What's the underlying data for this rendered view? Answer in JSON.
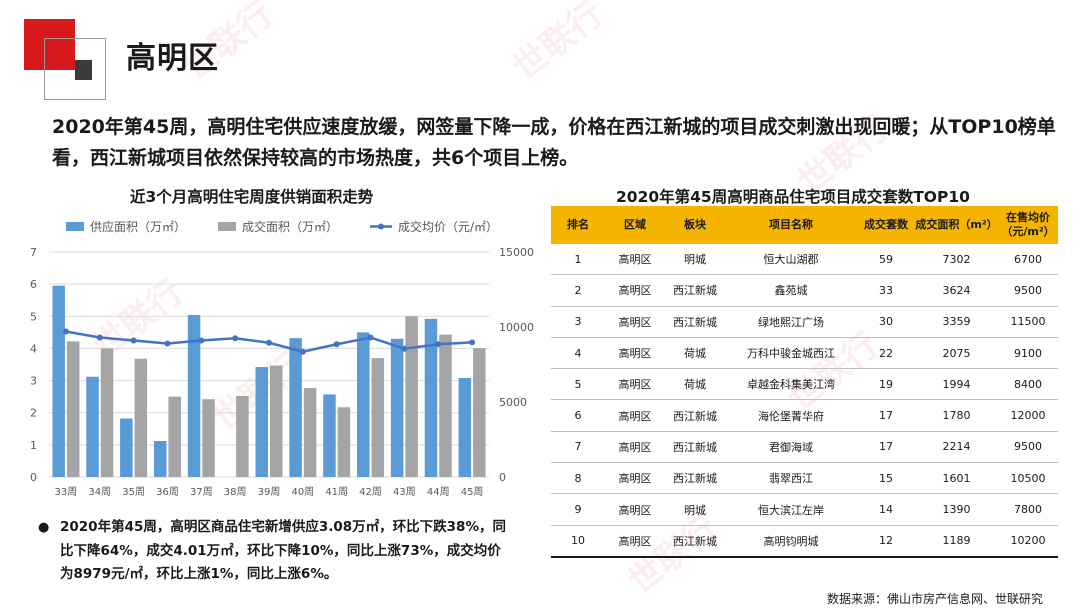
{
  "page": {
    "title": "高明区",
    "headline": "2020年第45周，高明住宅供应速度放缓，网签量下降一成，价格在西江新城的项目成交刺激出现回暖；从TOP10榜单看，西江新城项目依然保持较高的市场热度，共6个项目上榜。",
    "summary": "2020年第45周，高明区商品住宅新增供应3.08万㎡，环比下跌38%，同比下降64%，成交4.01万㎡，环比下降10%，同比上涨73%，成交均价为8979元/㎡，环比上涨1%，同比上涨6%。",
    "bullet": "●",
    "source": "数据来源：佛山市房产信息网、世联研究",
    "watermark": "世联行"
  },
  "chart_data": {
    "type": "bar",
    "title": "近3个月高明住宅周度供销面积走势",
    "categories": [
      "33周",
      "34周",
      "35周",
      "36周",
      "37周",
      "38周",
      "39周",
      "40周",
      "41周",
      "42周",
      "43周",
      "44周",
      "45周"
    ],
    "series": [
      {
        "name": "供应面积（万㎡）",
        "type": "bar",
        "axis": "left",
        "color": "#5b9bd5",
        "values": [
          5.95,
          3.12,
          1.82,
          1.12,
          5.04,
          0,
          3.42,
          4.32,
          2.57,
          4.5,
          4.3,
          4.92,
          3.08
        ]
      },
      {
        "name": "成交面积（万㎡）",
        "type": "bar",
        "axis": "left",
        "color": "#a5a5a5",
        "values": [
          4.22,
          4.0,
          3.68,
          2.5,
          2.42,
          2.52,
          3.47,
          2.77,
          2.17,
          3.7,
          5.0,
          4.43,
          4.01
        ]
      },
      {
        "name": "成交均价（元/㎡）",
        "type": "line",
        "axis": "right",
        "color": "#4472c4",
        "values": [
          9700,
          9300,
          9100,
          8900,
          9100,
          9250,
          8950,
          8350,
          8850,
          9300,
          8550,
          8850,
          8979
        ]
      }
    ],
    "ylim": [
      0,
      7
    ],
    "yticks": [
      0,
      1,
      2,
      3,
      4,
      5,
      6,
      7
    ],
    "y2lim": [
      0,
      15000
    ],
    "y2ticks": [
      0,
      5000,
      10000,
      15000
    ],
    "grid": true,
    "legend": "top"
  },
  "table": {
    "title": "2020年第45周高明商品住宅项目成交套数TOP10",
    "headers": [
      "排名",
      "区域",
      "板块",
      "项目名称",
      "成交套数",
      "成交面积（m²）",
      "在售均价（元/m²）"
    ],
    "rows": [
      [
        "1",
        "高明区",
        "明城",
        "恒大山湖郡",
        "59",
        "7302",
        "6700"
      ],
      [
        "2",
        "高明区",
        "西江新城",
        "鑫苑城",
        "33",
        "3624",
        "9500"
      ],
      [
        "3",
        "高明区",
        "西江新城",
        "绿地熙江广场",
        "30",
        "3359",
        "11500"
      ],
      [
        "4",
        "高明区",
        "荷城",
        "万科中骏金城西江",
        "22",
        "2075",
        "9100"
      ],
      [
        "5",
        "高明区",
        "荷城",
        "卓越金科集美江湾",
        "19",
        "1994",
        "8400"
      ],
      [
        "6",
        "高明区",
        "西江新城",
        "海伦堡菁华府",
        "17",
        "1780",
        "12000"
      ],
      [
        "7",
        "高明区",
        "西江新城",
        "君御海域",
        "17",
        "2214",
        "9500"
      ],
      [
        "8",
        "高明区",
        "西江新城",
        "翡翠西江",
        "15",
        "1601",
        "10500"
      ],
      [
        "9",
        "高明区",
        "明城",
        "恒大滨江左岸",
        "14",
        "1390",
        "7800"
      ],
      [
        "10",
        "高明区",
        "西江新城",
        "高明钧明城",
        "12",
        "1189",
        "10200"
      ]
    ]
  }
}
